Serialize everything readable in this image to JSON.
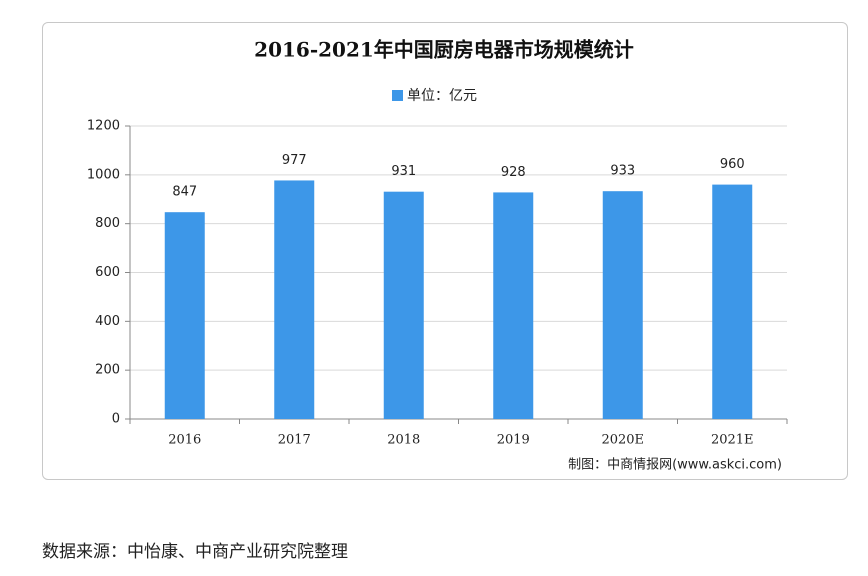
{
  "chart_data": {
    "type": "bar",
    "title": "2016-2021年中国厨房电器市场规模统计",
    "categories": [
      "2016",
      "2017",
      "2018",
      "2019",
      "2020E",
      "2021E"
    ],
    "series": [
      {
        "name": "单位：亿元",
        "color": "#3d97e8",
        "values": [
          847,
          977,
          931,
          928,
          933,
          960
        ]
      }
    ],
    "ylim": [
      0,
      1200
    ],
    "yticks": [
      0,
      200,
      400,
      600,
      800,
      1000,
      1200
    ],
    "grid": true,
    "credit": "制图：中商情报网(www.askci.com)"
  },
  "source_note": "数据来源：中怡康、中商产业研究院整理"
}
